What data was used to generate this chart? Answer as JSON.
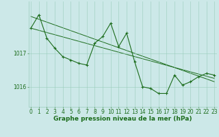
{
  "title": "Graphe pression niveau de la mer (hPa)",
  "x_labels": [
    "0",
    "1",
    "2",
    "3",
    "4",
    "5",
    "6",
    "7",
    "8",
    "9",
    "10",
    "11",
    "12",
    "13",
    "14",
    "15",
    "16",
    "17",
    "18",
    "19",
    "20",
    "21",
    "22",
    "23"
  ],
  "hours": [
    0,
    1,
    2,
    3,
    4,
    5,
    6,
    7,
    8,
    9,
    10,
    11,
    12,
    13,
    14,
    15,
    16,
    17,
    18,
    19,
    20,
    21,
    22,
    23
  ],
  "pressure": [
    1017.75,
    1018.15,
    1017.45,
    1017.15,
    1016.9,
    1016.8,
    1016.7,
    1016.65,
    1017.3,
    1017.5,
    1017.9,
    1017.2,
    1017.6,
    1016.75,
    1016.0,
    1015.95,
    1015.8,
    1015.8,
    1016.35,
    1016.05,
    1016.15,
    1016.3,
    1016.4,
    1016.35
  ],
  "trend1": [
    1018.1,
    1016.15
  ],
  "trend2": [
    1017.75,
    1016.25
  ],
  "ylim_min": 1015.4,
  "ylim_max": 1018.55,
  "yticks": [
    1016,
    1017
  ],
  "line_color": "#1a6b1a",
  "bg_color": "#cce8e8",
  "grid_color": "#99ccbb",
  "title_color": "#1a6b1a",
  "title_fontsize": 6.5,
  "tick_fontsize": 5.5,
  "label_fontsize": 6.5
}
